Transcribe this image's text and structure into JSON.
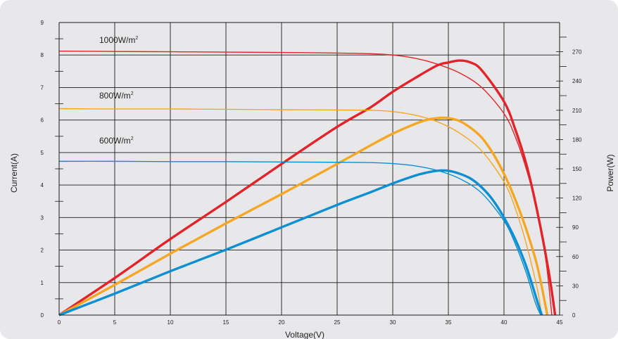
{
  "chart_data": {
    "type": "line",
    "xlabel": "Voltage(V)",
    "ylabel_left": "Current(A)",
    "ylabel_right": "Power(W)",
    "xlim": [
      0,
      45
    ],
    "ylim_left": [
      0,
      9
    ],
    "ylim_right": [
      0,
      300
    ],
    "x_ticks": [
      "0",
      "5",
      "10",
      "15",
      "20",
      "25",
      "30",
      "35",
      "40",
      "45"
    ],
    "y_ticks_left": [
      "0",
      "1",
      "2",
      "3",
      "4",
      "5",
      "6",
      "7",
      "8",
      "9"
    ],
    "y_ticks_right": [
      "0",
      "30",
      "60",
      "90",
      "120",
      "150",
      "180",
      "210",
      "240",
      "270"
    ],
    "grid": true,
    "colors": {
      "1000": "#e2232a",
      "800": "#f5a623",
      "600": "#0b8fd3",
      "background": "#e8e8ea"
    },
    "series": [
      {
        "name": "1000W/m²",
        "label_base": "1000W/m",
        "label_sup": "2",
        "color": "#e2232a",
        "current": {
          "axis": "left",
          "x": [
            0,
            5,
            10,
            15,
            20,
            25,
            28,
            30,
            32,
            34,
            36,
            38,
            40,
            41,
            42,
            43,
            43.8,
            44.3
          ],
          "y": [
            8.12,
            8.11,
            8.1,
            8.09,
            8.08,
            8.06,
            8.04,
            8.0,
            7.9,
            7.72,
            7.45,
            7.0,
            6.2,
            5.5,
            4.5,
            3.2,
            1.6,
            0
          ]
        },
        "power": {
          "axis": "right",
          "x": [
            0,
            5,
            10,
            15,
            20,
            25,
            28,
            30,
            32,
            34,
            35,
            36,
            37,
            38,
            40,
            41,
            42,
            43,
            44,
            44.6
          ],
          "y": [
            0,
            38,
            78,
            116,
            155,
            193,
            213,
            229,
            243,
            256,
            259,
            261,
            259,
            251,
            219,
            191,
            155,
            106,
            46,
            0
          ]
        }
      },
      {
        "name": "800W/m²",
        "label_base": "800W/m",
        "label_sup": "2",
        "color": "#f5a623",
        "current": {
          "axis": "left",
          "x": [
            0,
            5,
            10,
            15,
            20,
            25,
            28,
            30,
            32,
            34,
            36,
            38,
            40,
            41,
            42,
            43,
            43.4
          ],
          "y": [
            6.35,
            6.34,
            6.34,
            6.33,
            6.32,
            6.31,
            6.3,
            6.26,
            6.15,
            5.95,
            5.6,
            5.05,
            4.1,
            3.3,
            2.2,
            0.8,
            0
          ]
        },
        "power": {
          "axis": "right",
          "x": [
            0,
            5,
            10,
            15,
            20,
            25,
            28,
            30,
            32,
            33,
            34,
            35,
            36,
            37,
            38,
            39,
            40,
            41,
            42,
            43,
            43.9
          ],
          "y": [
            0,
            31,
            63,
            94,
            124,
            155,
            174,
            186,
            196,
            200,
            202,
            202,
            199,
            192,
            182,
            166,
            145,
            119,
            88,
            50,
            0
          ]
        }
      },
      {
        "name": "600W/m²",
        "label_base": "600W/m",
        "label_sup": "2",
        "color": "#0b8fd3",
        "current": {
          "axis": "left",
          "x": [
            0,
            5,
            10,
            15,
            20,
            25,
            28,
            30,
            32,
            34,
            36,
            38,
            40,
            41,
            42,
            42.8,
            43.3
          ],
          "y": [
            4.73,
            4.73,
            4.72,
            4.72,
            4.71,
            4.7,
            4.69,
            4.66,
            4.59,
            4.45,
            4.2,
            3.75,
            2.9,
            2.2,
            1.3,
            0.4,
            0
          ]
        },
        "power": {
          "axis": "right",
          "x": [
            0,
            5,
            10,
            15,
            20,
            25,
            28,
            30,
            32,
            33,
            34,
            35,
            36,
            37,
            38,
            39,
            40,
            41,
            42,
            43,
            43.4
          ],
          "y": [
            0,
            22,
            45,
            67,
            90,
            113,
            126,
            135,
            143,
            146,
            148,
            148,
            145,
            140,
            131,
            118,
            100,
            78,
            50,
            14,
            0
          ]
        }
      }
    ]
  }
}
